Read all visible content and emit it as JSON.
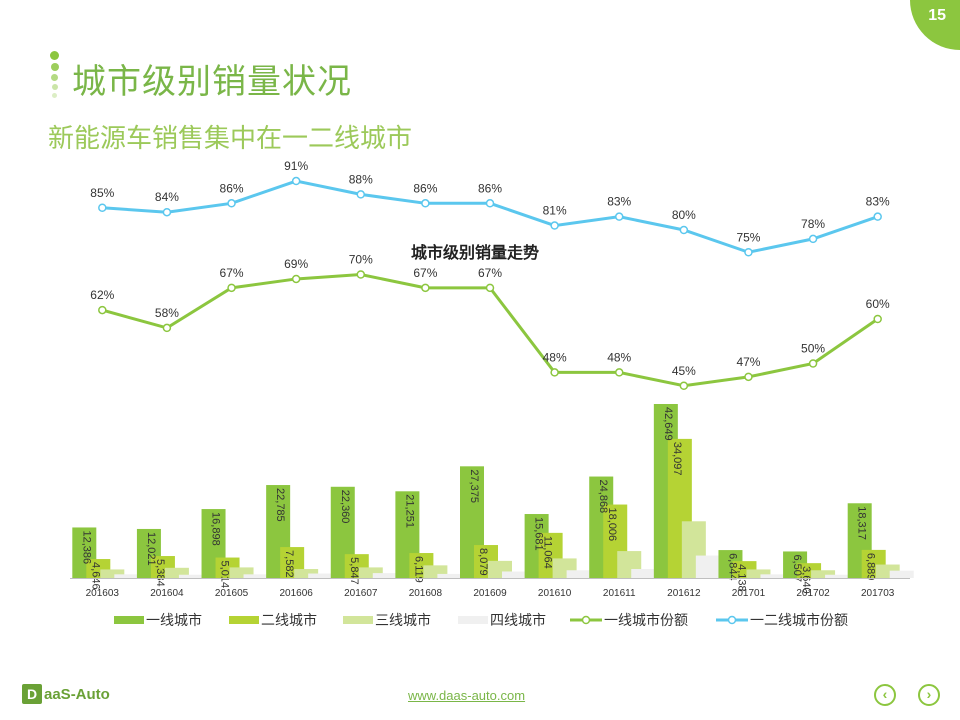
{
  "page_number": "15",
  "header": {
    "title": "城市级别销量状况",
    "subtitle": "新能源车销售集中在一二线城市"
  },
  "footer": {
    "logo_mark": "D",
    "logo_text": "aaS-Auto",
    "url": "www.daas-auto.com",
    "prev_icon": "chevron-left-icon",
    "next_icon": "chevron-right-icon"
  },
  "colors": {
    "accent": "#8cc63f",
    "tier1": "#8cc63f",
    "tier2": "#b5d334",
    "tier3": "#d2e59a",
    "tier4": "#f0f0f0",
    "share1": "#8cc63f",
    "share12": "#5bc7ee"
  },
  "chart_data": {
    "type": "bar",
    "title": "城市级别销量走势",
    "categories": [
      "201603",
      "201604",
      "201605",
      "201606",
      "201607",
      "201608",
      "201609",
      "201610",
      "201611",
      "201612",
      "201701",
      "201702",
      "201703"
    ],
    "series": [
      {
        "name": "一线城市",
        "type": "bar",
        "values": [
          12386,
          12021,
          16898,
          22785,
          22360,
          21251,
          27375,
          15681,
          24868,
          42649,
          6844,
          6507,
          18317
        ]
      },
      {
        "name": "二线城市",
        "type": "bar",
        "values": [
          4646,
          5384,
          5014,
          7582,
          5847,
          6119,
          8079,
          11064,
          18006,
          34097,
          4138,
          3640,
          6889
        ]
      },
      {
        "name": "三线城市",
        "type": "bar",
        "values": [
          2100,
          2500,
          2600,
          2200,
          2600,
          3100,
          4200,
          4800,
          6600,
          13900,
          2100,
          1900,
          3300
        ]
      },
      {
        "name": "四线城市",
        "type": "bar",
        "values": [
          900,
          800,
          900,
          1100,
          1200,
          1000,
          1600,
          1900,
          2200,
          5500,
          900,
          800,
          1800
        ]
      },
      {
        "name": "一线城市份额",
        "type": "line",
        "values": [
          62,
          58,
          67,
          69,
          70,
          67,
          67,
          48,
          48,
          45,
          47,
          50,
          60
        ],
        "labels": [
          "62%",
          "58%",
          "67%",
          "69%",
          "70%",
          "67%",
          "67%",
          "48%",
          "48%",
          "45%",
          "47%",
          "50%",
          "60%"
        ]
      },
      {
        "name": "一二线城市份额",
        "type": "line",
        "values": [
          85,
          84,
          86,
          91,
          88,
          86,
          86,
          81,
          83,
          80,
          75,
          78,
          83
        ],
        "labels": [
          "85%",
          "84%",
          "86%",
          "91%",
          "88%",
          "86%",
          "86%",
          "81%",
          "83%",
          "80%",
          "75%",
          "78%",
          "83%"
        ]
      }
    ],
    "bar_labels": {
      "一线城市": [
        "12,386",
        "12,021",
        "16,898",
        "22,785",
        "22,360",
        "21,251",
        "27,375",
        "15,681",
        "24,868",
        "42,649",
        "6,844",
        "6,507",
        "18,317"
      ],
      "二线城市": [
        "4,646",
        "5,384",
        "5,014",
        "7,582",
        "5,847",
        "6,119",
        "8,079",
        "11,064",
        "18,006",
        "34,097",
        "4,138",
        "3,640",
        "6,889"
      ]
    },
    "legend_position": "bottom",
    "grid": false
  }
}
